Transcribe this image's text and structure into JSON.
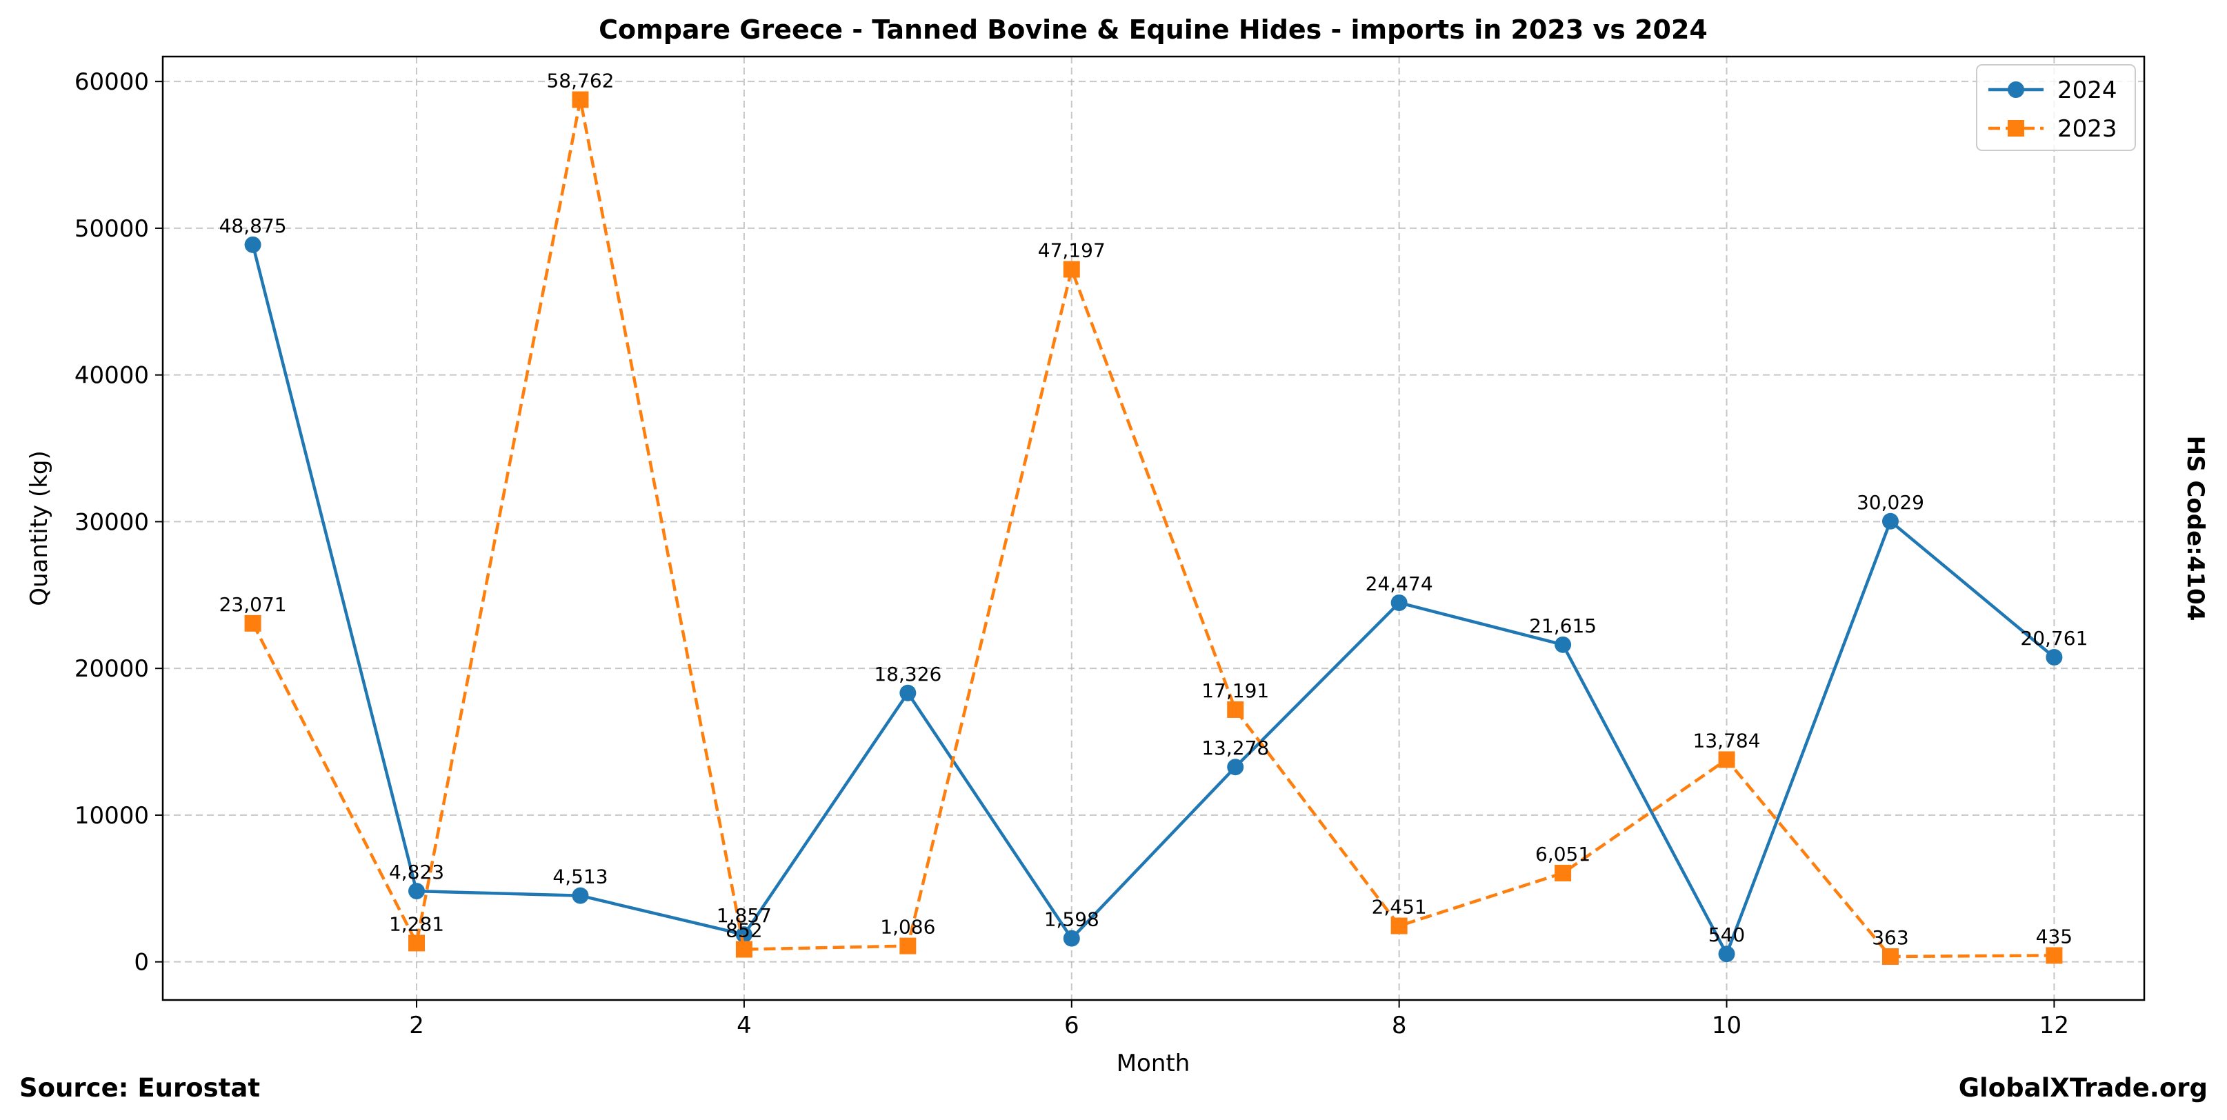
{
  "chart_data": {
    "type": "line",
    "title": "Compare Greece - Tanned Bovine & Equine Hides - imports in 2023 vs 2024",
    "xlabel": "Month",
    "ylabel": "Quantity (kg)",
    "side_label": "HS Code:4104",
    "xlim": [
      0.45,
      12.55
    ],
    "ylim": [
      -2600,
      61700
    ],
    "x_ticks": [
      2,
      4,
      6,
      8,
      10,
      12
    ],
    "y_ticks": [
      0,
      10000,
      20000,
      30000,
      40000,
      50000,
      60000
    ],
    "grid": true,
    "legend_position": "top-right",
    "x": [
      1,
      2,
      3,
      4,
      5,
      6,
      7,
      8,
      9,
      10,
      11,
      12
    ],
    "series": [
      {
        "name": "2024",
        "color": "#1f77b4",
        "line_style": "solid",
        "marker": "circle",
        "values": [
          48875,
          4823,
          4513,
          1857,
          18326,
          1598,
          13278,
          24474,
          21615,
          540,
          30029,
          20761
        ],
        "labels": [
          "48,875",
          "4,823",
          "4,513",
          "1,857",
          "18,326",
          "1,598",
          "13,278",
          "24,474",
          "21,615",
          "540",
          "30,029",
          "20,761"
        ]
      },
      {
        "name": "2023",
        "color": "#ff7f0e",
        "line_style": "dashed",
        "marker": "square",
        "values": [
          23071,
          1281,
          58762,
          852,
          1086,
          47197,
          17191,
          2451,
          6051,
          13784,
          363,
          435
        ],
        "labels": [
          "23,071",
          "1,281",
          "58,762",
          "852",
          "1,086",
          "47,197",
          "17,191",
          "2,451",
          "6,051",
          "13,784",
          "363",
          "435"
        ]
      }
    ]
  },
  "footer": {
    "source": "Source: Eurostat",
    "site": "GlobalXTrade.org"
  }
}
